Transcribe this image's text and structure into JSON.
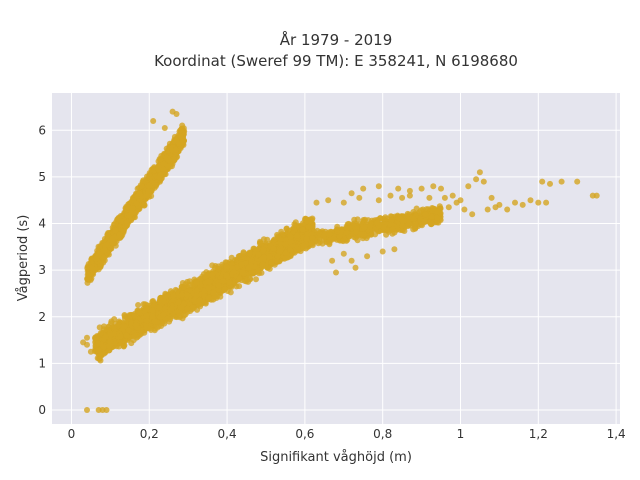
{
  "chart_data": {
    "type": "scatter",
    "title_line1": "År 1979 - 2019",
    "title_line2": "Koordinat (Sweref 99 TM): E 358241, N 6198680",
    "xlabel": "Signifikant våghöjd (m)",
    "ylabel": "Vågperiod (s)",
    "xlim": [
      -0.05,
      1.41
    ],
    "ylim": [
      -0.3,
      6.8
    ],
    "x_ticks": [
      0,
      0.2,
      0.4,
      0.6,
      0.8,
      1.0,
      1.2,
      1.4
    ],
    "x_tick_labels": [
      "0",
      "0,2",
      "0,4",
      "0,6",
      "0,8",
      "1",
      "1,2",
      "1,4"
    ],
    "y_ticks": [
      0,
      1,
      2,
      3,
      4,
      5,
      6
    ],
    "y_tick_labels": [
      "0",
      "1",
      "2",
      "3",
      "4",
      "5",
      "6"
    ],
    "grid": true,
    "background": "#e5e5ee",
    "marker_color": "#d4a520",
    "clusters": [
      {
        "x_range": [
          0.04,
          0.29
        ],
        "y_at_xmin": 2.9,
        "y_at_xmax": 5.9,
        "x_spread": 0.0,
        "y_spread": 0.55,
        "count": 1700
      },
      {
        "x_range": [
          0.06,
          0.62
        ],
        "y_at_xmin": 1.35,
        "y_at_xmax": 3.85,
        "x_spread": 0.0,
        "y_spread": 0.7,
        "count": 3600
      },
      {
        "x_range": [
          0.55,
          0.95
        ],
        "y_at_xmin": 3.55,
        "y_at_xmax": 4.2,
        "x_spread": 0.0,
        "y_spread": 0.45,
        "count": 700
      }
    ],
    "outliers": [
      [
        0.04,
        0.0
      ],
      [
        0.07,
        0.0
      ],
      [
        0.08,
        0.0
      ],
      [
        0.09,
        0.0
      ],
      [
        0.27,
        6.35
      ],
      [
        0.24,
        6.05
      ],
      [
        0.28,
        6.0
      ],
      [
        0.21,
        6.2
      ],
      [
        0.26,
        6.4
      ],
      [
        0.04,
        1.55
      ],
      [
        0.03,
        1.45
      ],
      [
        0.05,
        1.25
      ],
      [
        0.04,
        1.4
      ],
      [
        0.75,
        4.75
      ],
      [
        0.79,
        4.8
      ],
      [
        0.84,
        4.75
      ],
      [
        0.87,
        4.7
      ],
      [
        0.9,
        4.75
      ],
      [
        0.93,
        4.8
      ],
      [
        0.95,
        4.75
      ],
      [
        0.92,
        4.55
      ],
      [
        0.96,
        4.55
      ],
      [
        0.98,
        4.6
      ],
      [
        1.0,
        4.5
      ],
      [
        1.02,
        4.8
      ],
      [
        1.04,
        4.95
      ],
      [
        1.05,
        5.1
      ],
      [
        1.06,
        4.9
      ],
      [
        1.08,
        4.55
      ],
      [
        1.1,
        4.4
      ],
      [
        1.12,
        4.3
      ],
      [
        1.14,
        4.45
      ],
      [
        1.16,
        4.4
      ],
      [
        1.18,
        4.5
      ],
      [
        1.2,
        4.45
      ],
      [
        1.22,
        4.45
      ],
      [
        1.21,
        4.9
      ],
      [
        1.23,
        4.85
      ],
      [
        1.26,
        4.9
      ],
      [
        1.3,
        4.9
      ],
      [
        1.34,
        4.6
      ],
      [
        1.35,
        4.6
      ],
      [
        0.97,
        4.35
      ],
      [
        1.01,
        4.3
      ],
      [
        1.03,
        4.2
      ],
      [
        0.99,
        4.45
      ],
      [
        1.07,
        4.3
      ],
      [
        1.09,
        4.35
      ],
      [
        0.85,
        3.95
      ],
      [
        0.88,
        4.1
      ],
      [
        0.91,
        4.2
      ],
      [
        0.94,
        4.25
      ],
      [
        0.83,
        3.45
      ],
      [
        0.8,
        3.4
      ],
      [
        0.72,
        3.2
      ],
      [
        0.7,
        3.35
      ],
      [
        0.73,
        3.05
      ],
      [
        0.76,
        3.3
      ],
      [
        0.67,
        3.2
      ],
      [
        0.68,
        2.95
      ],
      [
        0.74,
        4.55
      ],
      [
        0.7,
        4.45
      ],
      [
        0.66,
        4.5
      ],
      [
        0.63,
        4.45
      ],
      [
        0.72,
        4.65
      ],
      [
        0.85,
        4.55
      ],
      [
        0.87,
        4.6
      ],
      [
        0.82,
        4.6
      ],
      [
        0.79,
        4.5
      ]
    ]
  }
}
